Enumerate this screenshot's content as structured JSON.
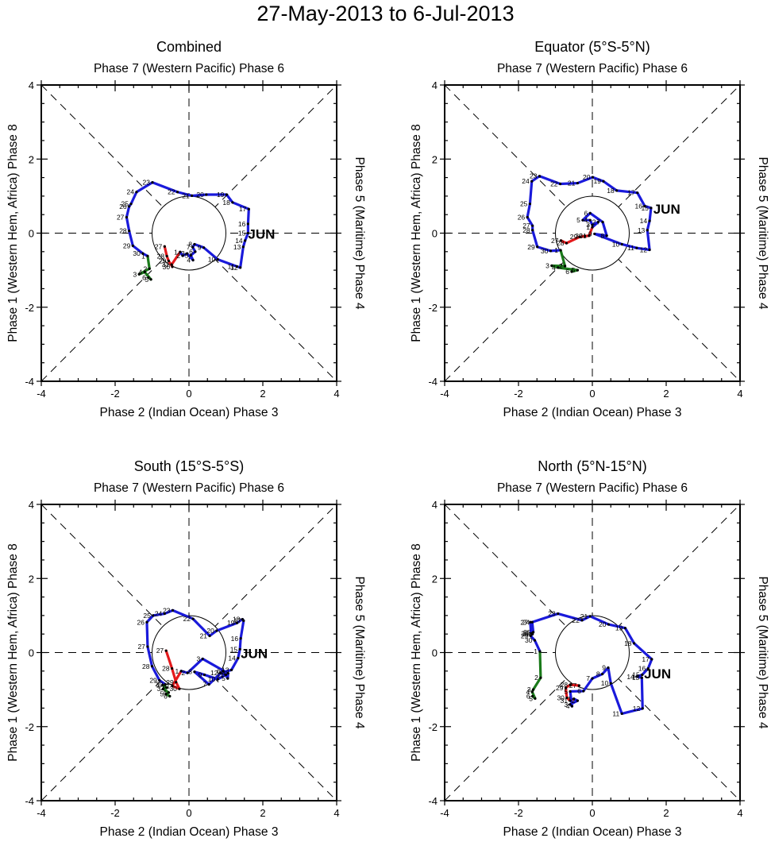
{
  "title": "27-May-2013 to 6-Jul-2013",
  "colors": {
    "may": "#e41a1c",
    "jun": "#1a1adb",
    "jul": "#1a7a1a",
    "axes": "#000000",
    "month_label": "#1a1adb"
  },
  "chart_data": [
    {
      "type": "line",
      "title": "Combined",
      "top_label": "Phase 7 (Western Pacific) Phase 6",
      "bottom_label": "Phase 2 (Indian Ocean) Phase 3",
      "left_label": "Phase 1 (Western Hem, Africa) Phase 8",
      "right_label": "Phase 5 (Maritime) Phase 4",
      "xlim": [
        -4,
        4
      ],
      "ylim": [
        -4,
        4
      ],
      "xticks": [
        "-4",
        "-2",
        "0",
        "2",
        "4"
      ],
      "yticks": [
        "-4",
        "-2",
        "0",
        "2",
        "4"
      ],
      "month_label": "JUN",
      "month_label_pos": [
        1.6,
        0.0
      ],
      "series": [
        {
          "name": "May",
          "color_key": "may",
          "labels": [
            "27",
            "28",
            "29",
            "30",
            "31"
          ],
          "x": [
            -0.66,
            -0.6,
            -0.55,
            -0.45,
            -0.47
          ],
          "y": [
            -0.36,
            -0.62,
            -0.75,
            -0.91,
            -0.85
          ]
        },
        {
          "name": "Jun",
          "color_key": "jun",
          "labels": [
            "1",
            "2",
            "3",
            "4",
            "5",
            "6",
            "7",
            "8",
            "9",
            "10",
            "11",
            "12",
            "13",
            "14",
            "15",
            "16",
            "17",
            "18",
            "19",
            "20",
            "21",
            "22",
            "23",
            "24",
            "25",
            "26",
            "27",
            "28",
            "29",
            "30"
          ],
          "x": [
            -0.24,
            -0.17,
            -0.05,
            0.11,
            0.05,
            0.17,
            0.1,
            0.15,
            0.4,
            0.78,
            1.3,
            1.39,
            1.47,
            1.52,
            1.6,
            1.6,
            1.62,
            1.18,
            1.02,
            0.47,
            0.08,
            -0.31,
            -0.99,
            -1.42,
            -1.57,
            -1.62,
            -1.69,
            -1.62,
            -1.52,
            -1.25
          ],
          "y": [
            -0.51,
            -0.61,
            -0.55,
            -0.73,
            -0.6,
            -0.5,
            -0.38,
            -0.3,
            -0.39,
            -0.71,
            -0.9,
            -0.93,
            -0.37,
            -0.2,
            0.0,
            0.25,
            0.65,
            0.83,
            1.04,
            1.04,
            1.01,
            1.11,
            1.37,
            1.11,
            0.79,
            0.72,
            0.43,
            0.06,
            -0.34,
            -0.55
          ]
        },
        {
          "name": "Jul",
          "color_key": "jul",
          "labels": [
            "1",
            "2",
            "3",
            "4",
            "5",
            "6"
          ],
          "x": [
            -1.12,
            -1.07,
            -1.35,
            -1.2,
            -1.03,
            -1.1
          ],
          "y": [
            -0.62,
            -0.96,
            -1.11,
            -1.05,
            -1.25,
            -1.2
          ]
        }
      ]
    },
    {
      "type": "line",
      "title": "Equator (5°S-5°N)",
      "top_label": "Phase 7 (Western Pacific) Phase 6",
      "bottom_label": "Phase 2 (Indian Ocean) Phase 3",
      "left_label": "Phase 1 (Western Hem, Africa) Phase 8",
      "right_label": "Phase 5 (Maritime) Phase 4",
      "xlim": [
        -4,
        4
      ],
      "ylim": [
        -4,
        4
      ],
      "xticks": [
        "-4",
        "-2",
        "0",
        "2",
        "4"
      ],
      "yticks": [
        "-4",
        "-2",
        "0",
        "2",
        "4"
      ],
      "month_label": "JUN",
      "month_label_pos": [
        1.65,
        0.68
      ],
      "series": [
        {
          "name": "May",
          "color_key": "may",
          "labels": [
            "27",
            "28",
            "29",
            "30",
            "31"
          ],
          "x": [
            -0.85,
            -0.7,
            -0.34,
            -0.2,
            -0.09
          ],
          "y": [
            -0.2,
            -0.27,
            -0.1,
            -0.08,
            -0.07
          ]
        },
        {
          "name": "Jun",
          "color_key": "jun",
          "labels": [
            "1",
            "2",
            "3",
            "4",
            "5",
            "6",
            "7",
            "8",
            "9",
            "10",
            "11",
            "12",
            "13",
            "14",
            "15",
            "16",
            "17",
            "18",
            "19",
            "20",
            "21",
            "22",
            "23",
            "24",
            "25",
            "26",
            "27",
            "28",
            "29",
            "30"
          ],
          "x": [
            0.0,
            0.16,
            0.0,
            -0.06,
            -0.26,
            -0.06,
            0.28,
            0.39,
            0.06,
            0.8,
            1.2,
            1.55,
            1.49,
            1.55,
            1.59,
            1.42,
            1.22,
            0.66,
            0.3,
            0.01,
            -0.4,
            -0.87,
            -1.43,
            -1.64,
            -1.69,
            -1.76,
            -1.62,
            -1.62,
            -1.49,
            -1.13
          ],
          "y": [
            0.16,
            0.3,
            0.22,
            0.35,
            0.35,
            0.54,
            0.3,
            -0.07,
            -0.02,
            -0.3,
            -0.4,
            -0.45,
            0.08,
            0.33,
            0.68,
            0.73,
            1.09,
            1.15,
            1.4,
            1.51,
            1.35,
            1.33,
            1.54,
            1.4,
            0.79,
            0.43,
            0.2,
            0.08,
            -0.37,
            -0.48
          ]
        },
        {
          "name": "Jul",
          "color_key": "jul",
          "labels": [
            "1",
            "2",
            "3",
            "4",
            "5",
            "6"
          ],
          "x": [
            -0.86,
            -0.74,
            -1.1,
            -0.93,
            -0.4,
            -0.56
          ],
          "y": [
            -0.46,
            -0.89,
            -0.88,
            -0.93,
            -1.0,
            -1.04
          ]
        }
      ]
    },
    {
      "type": "line",
      "title": "South (15°S-5°S)",
      "top_label": "Phase 7 (Western Pacific) Phase 6",
      "bottom_label": "Phase 2 (Indian Ocean) Phase 3",
      "left_label": "Phase 1 (Western Hem, Africa) Phase 8",
      "right_label": "Phase 5 (Maritime) Phase 4",
      "xlim": [
        -4,
        4
      ],
      "ylim": [
        -4,
        4
      ],
      "xticks": [
        "-4",
        "-2",
        "0",
        "2",
        "4"
      ],
      "yticks": [
        "-4",
        "-2",
        "0",
        "2",
        "4"
      ],
      "month_label": "JUN",
      "month_label_pos": [
        1.4,
        0.0
      ],
      "series": [
        {
          "name": "May",
          "color_key": "may",
          "labels": [
            "27",
            "28",
            "29",
            "30",
            "31"
          ],
          "x": [
            -0.62,
            -0.46,
            -0.35,
            -0.26,
            -0.45
          ],
          "y": [
            0.05,
            -0.43,
            -0.8,
            -0.98,
            -0.9
          ]
        },
        {
          "name": "Jun",
          "color_key": "jun",
          "labels": [
            "1",
            "2",
            "3",
            "4",
            "5",
            "6",
            "7",
            "8",
            "9",
            "10",
            "11",
            "12",
            "13",
            "14",
            "15",
            "16",
            "17",
            "18",
            "19",
            "20",
            "21",
            "22",
            "23",
            "24",
            "25",
            "26",
            "27",
            "28",
            "29",
            "30"
          ],
          "x": [
            -0.21,
            -0.04,
            0.37,
            1.06,
            1.05,
            0.92,
            0.54,
            0.15,
            0.42,
            0.78,
            1.0,
            0.85,
            1.15,
            1.33,
            1.38,
            1.4,
            1.48,
            1.45,
            1.3,
            0.75,
            0.56,
            0.11,
            -0.44,
            -0.66,
            -0.97,
            -1.14,
            -1.12,
            -1.0,
            -0.8,
            -0.64
          ],
          "y": [
            -0.5,
            -0.55,
            -0.17,
            -0.56,
            -0.7,
            -0.5,
            -0.86,
            -0.52,
            -0.6,
            -0.72,
            -0.6,
            -0.55,
            -0.47,
            -0.15,
            0.09,
            0.38,
            0.86,
            0.9,
            0.8,
            0.59,
            0.45,
            0.91,
            1.14,
            1.05,
            1.0,
            0.82,
            0.16,
            -0.37,
            -0.75,
            -0.86
          ]
        },
        {
          "name": "Jul",
          "color_key": "jul",
          "labels": [
            "1",
            "2",
            "3",
            "4",
            "5",
            "6"
          ],
          "x": [
            -0.72,
            -0.6,
            -0.7,
            -0.55,
            -0.62,
            -0.52
          ],
          "y": [
            -0.88,
            -0.95,
            -0.98,
            -1.08,
            -1.12,
            -1.18
          ]
        }
      ]
    },
    {
      "type": "line",
      "title": "North (5°N-15°N)",
      "top_label": "Phase 7 (Western Pacific) Phase 6",
      "bottom_label": "Phase 2 (Indian Ocean) Phase 3",
      "left_label": "Phase 1 (Western Hem, Africa) Phase 8",
      "right_label": "Phase 5 (Maritime) Phase 4",
      "xlim": [
        -4,
        4
      ],
      "ylim": [
        -4,
        4
      ],
      "xticks": [
        "-4",
        "-2",
        "0",
        "2",
        "4"
      ],
      "yticks": [
        "-4",
        "-2",
        "0",
        "2",
        "4"
      ],
      "month_label": "JUN",
      "month_label_pos": [
        1.4,
        -0.55
      ],
      "series": [
        {
          "name": "May",
          "color_key": "may",
          "labels": [
            "27",
            "28",
            "29",
            "30",
            "31"
          ],
          "x": [
            -0.36,
            -0.6,
            -0.72,
            -0.69,
            -0.6
          ],
          "y": [
            -0.89,
            -0.87,
            -0.95,
            -1.22,
            -1.3
          ]
        },
        {
          "name": "Jun",
          "color_key": "jun",
          "labels": [
            "1",
            "2",
            "3",
            "4",
            "5",
            "6",
            "7",
            "8",
            "9",
            "10",
            "11",
            "12",
            "13",
            "14",
            "15",
            "16",
            "17",
            "18",
            "19",
            "20",
            "21",
            "22",
            "23",
            "24",
            "25",
            "26",
            "27",
            "28",
            "29",
            "30"
          ],
          "x": [
            -0.5,
            -0.4,
            -0.6,
            -0.55,
            -0.6,
            -0.24,
            0.0,
            0.27,
            0.43,
            0.5,
            0.8,
            1.36,
            1.34,
            1.2,
            1.35,
            1.51,
            1.61,
            1.13,
            0.89,
            0.44,
            -0.06,
            -0.28,
            -0.93,
            -1.63,
            -1.6,
            -1.66,
            -1.68,
            -1.62,
            -1.67,
            -1.56
          ],
          "y": [
            -1.25,
            -1.3,
            -1.4,
            -1.45,
            -1.05,
            -1.04,
            -0.7,
            -0.58,
            -0.41,
            -0.83,
            -1.65,
            -1.51,
            -0.68,
            -0.65,
            -0.6,
            -0.43,
            -0.18,
            0.25,
            0.66,
            0.76,
            0.98,
            0.87,
            1.05,
            0.82,
            0.55,
            0.52,
            0.82,
            0.5,
            0.45,
            0.33
          ]
        },
        {
          "name": "Jul",
          "color_key": "jul",
          "labels": [
            "1",
            "2",
            "3",
            "4",
            "5",
            "6"
          ],
          "x": [
            -1.42,
            -1.4,
            -1.6,
            -1.63,
            -1.55,
            -1.62
          ],
          "y": [
            0.03,
            -0.68,
            -1.0,
            -1.06,
            -1.24,
            -1.18
          ]
        }
      ]
    }
  ]
}
